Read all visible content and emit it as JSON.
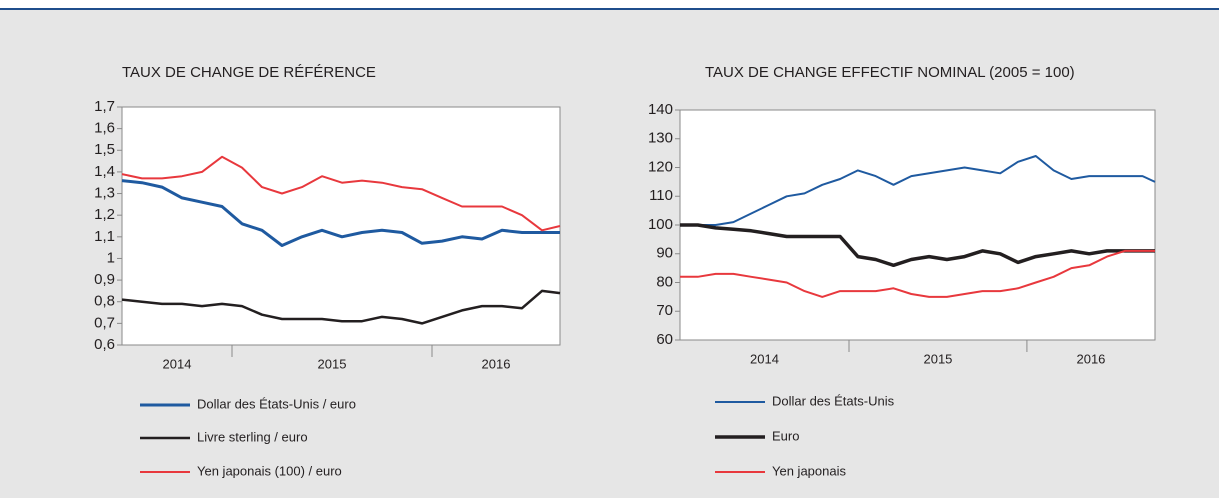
{
  "chart_data": [
    {
      "type": "line",
      "title": "TAUX DE CHANGE DE RÉFÉRENCE",
      "x": [
        2014.45,
        2014.55,
        2014.65,
        2014.75,
        2014.85,
        2014.95,
        2015.05,
        2015.15,
        2015.25,
        2015.35,
        2015.45,
        2015.55,
        2015.65,
        2015.75,
        2015.85,
        2015.95,
        2016.05,
        2016.15,
        2016.25,
        2016.35,
        2016.45,
        2016.55,
        2016.64
      ],
      "xlim": [
        2014.45,
        2016.64
      ],
      "xticks": [
        2015,
        2016
      ],
      "year_labels": [
        "2014",
        "2015",
        "2016"
      ],
      "ylim": [
        0.6,
        1.7
      ],
      "yticks": [
        {
          "value": 0.6,
          "label": "0,6"
        },
        {
          "value": 0.7,
          "label": "0,7"
        },
        {
          "value": 0.8,
          "label": "0,8"
        },
        {
          "value": 0.9,
          "label": "0,9"
        },
        1,
        {
          "value": 1.1,
          "label": "1,1"
        },
        {
          "value": 1.2,
          "label": "1,2"
        },
        {
          "value": 1.3,
          "label": "1,3"
        },
        {
          "value": 1.4,
          "label": "1,4"
        },
        {
          "value": 1.5,
          "label": "1,5"
        },
        {
          "value": 1.6,
          "label": "1,6"
        },
        {
          "value": 1.7,
          "label": "1,7"
        }
      ],
      "series": [
        {
          "name": "Dollar des États-Unis / euro",
          "color": "#1f5aa0",
          "values": [
            1.36,
            1.35,
            1.33,
            1.28,
            1.26,
            1.24,
            1.16,
            1.13,
            1.06,
            1.1,
            1.13,
            1.1,
            1.12,
            1.13,
            1.12,
            1.07,
            1.08,
            1.1,
            1.09,
            1.13,
            1.12,
            1.12,
            1.12
          ]
        },
        {
          "name": "Livre sterling / euro",
          "color": "#231f20",
          "values": [
            0.81,
            0.8,
            0.79,
            0.79,
            0.78,
            0.79,
            0.78,
            0.74,
            0.72,
            0.72,
            0.72,
            0.71,
            0.71,
            0.73,
            0.72,
            0.7,
            0.73,
            0.76,
            0.78,
            0.78,
            0.77,
            0.85,
            0.84
          ]
        },
        {
          "name": "Yen japonais (100) / euro",
          "color": "#e8383d",
          "values": [
            1.39,
            1.37,
            1.37,
            1.38,
            1.4,
            1.47,
            1.42,
            1.33,
            1.3,
            1.33,
            1.38,
            1.35,
            1.36,
            1.35,
            1.33,
            1.32,
            1.28,
            1.24,
            1.24,
            1.24,
            1.2,
            1.13,
            1.15
          ]
        }
      ]
    },
    {
      "type": "line",
      "title": "TAUX DE CHANGE EFFECTIF NOMINAL (2005 = 100)",
      "x": [
        2014.05,
        2014.15,
        2014.25,
        2014.35,
        2014.45,
        2014.55,
        2014.65,
        2014.75,
        2014.85,
        2014.95,
        2015.05,
        2015.15,
        2015.25,
        2015.35,
        2015.45,
        2015.55,
        2015.65,
        2015.75,
        2015.85,
        2015.95,
        2016.05,
        2016.15,
        2016.25,
        2016.35,
        2016.45,
        2016.55,
        2016.65,
        2016.72
      ],
      "xlim": [
        2014.05,
        2016.72
      ],
      "xticks": [
        2015,
        2016
      ],
      "year_labels": [
        "2014",
        "2015",
        "2016"
      ],
      "ylim": [
        60,
        140
      ],
      "yticks": [
        60,
        70,
        80,
        90,
        100,
        110,
        120,
        130,
        140
      ],
      "series": [
        {
          "name": "Dollar des États-Unis",
          "color": "#1f5aa0",
          "values": [
            100,
            100,
            100,
            101,
            104,
            107,
            110,
            111,
            114,
            116,
            119,
            117,
            114,
            117,
            118,
            119,
            120,
            119,
            118,
            122,
            124,
            119,
            116,
            117,
            117,
            117,
            117,
            115
          ]
        },
        {
          "name": "Euro",
          "color": "#231f20",
          "values": [
            100,
            100,
            99,
            98.5,
            98,
            97,
            96,
            96,
            96,
            96,
            89,
            88,
            86,
            88,
            89,
            88,
            89,
            91,
            90,
            87,
            89,
            90,
            91,
            90,
            91,
            91,
            91,
            91
          ]
        },
        {
          "name": "Yen japonais",
          "color": "#e8383d",
          "values": [
            82,
            82,
            83,
            83,
            82,
            81,
            80,
            77,
            75,
            77,
            77,
            77,
            78,
            76,
            75,
            75,
            76,
            77,
            77,
            78,
            80,
            82,
            85,
            86,
            89,
            91,
            91,
            91
          ]
        }
      ]
    }
  ]
}
